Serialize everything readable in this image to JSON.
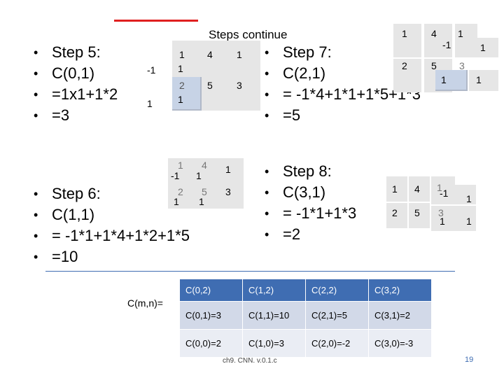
{
  "subtitle": "Steps continue",
  "step5": [
    "Step 5:",
    "C(0,1)",
    "=1x1+1*2",
    "=3"
  ],
  "step6": [
    "Step 6:",
    "C(1,1)",
    "= -1*1+1*4+1*2+1*5",
    "=10"
  ],
  "step7": [
    "Step 7:",
    "C(2,1)",
    "= -1*4+1*1+1*5+1*3",
    "=5"
  ],
  "step8": [
    "Step 8:",
    "C(3,1)",
    "= -1*1+1*3",
    "=2"
  ],
  "input_matrix": {
    "row0": [
      "1",
      "4",
      "1"
    ],
    "row1": [
      "2",
      "5",
      "3"
    ]
  },
  "kernel": {
    "row0": [
      "-1",
      "1"
    ],
    "row1": [
      "1",
      "1"
    ]
  },
  "cmn_label": "C(m,n)=",
  "result_table": {
    "header": [
      "C(0,2)",
      "C(1,2)",
      "C(2,2)",
      "C(3,2)"
    ],
    "row1": [
      "C(0,1)=3",
      "C(1,1)=10",
      "C(2,1)=5",
      "C(3,1)=2"
    ],
    "row2": [
      "C(0,0)=2",
      "C(1,0)=3",
      "C(2,0)=-2",
      "C(3,0)=-3"
    ]
  },
  "footer": "ch9. CNN. v.0.1.c",
  "page_number": "19",
  "colors": {
    "accent_red": "#e02020",
    "table_header": "#3f6db2"
  }
}
